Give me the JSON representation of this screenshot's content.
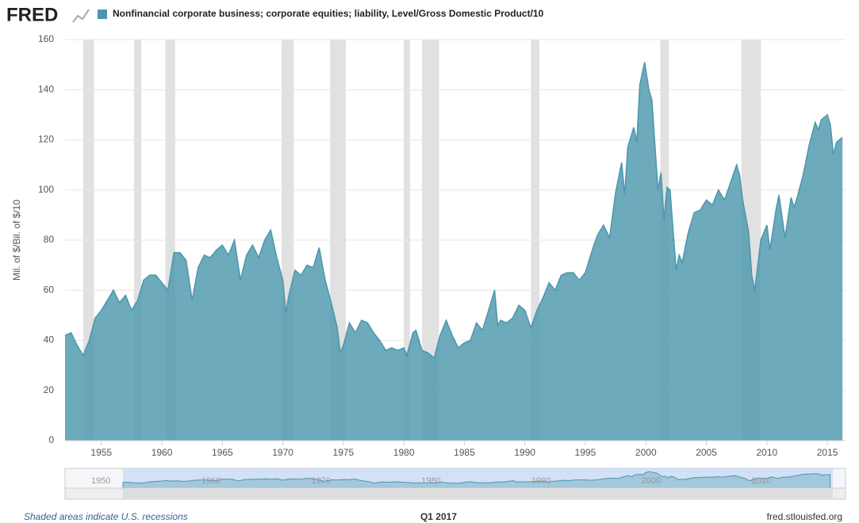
{
  "logo": "FRED",
  "chart_data": {
    "type": "area",
    "ylabel": "Mil. of $/Bil. of $/10",
    "series": [
      {
        "name": "Nonfinancial corporate business; corporate equities; liability, Level/Gross Domestic Product/10",
        "color": "#4c97ad",
        "x": [
          1952.0,
          1952.5,
          1953.0,
          1953.5,
          1954.0,
          1954.5,
          1955.0,
          1955.5,
          1956.0,
          1956.5,
          1957.0,
          1957.5,
          1958.0,
          1958.5,
          1959.0,
          1959.5,
          1960.0,
          1960.5,
          1961.0,
          1961.5,
          1962.0,
          1962.5,
          1963.0,
          1963.5,
          1964.0,
          1964.5,
          1965.0,
          1965.5,
          1966.0,
          1966.5,
          1967.0,
          1967.5,
          1968.0,
          1968.5,
          1969.0,
          1969.5,
          1970.0,
          1970.25,
          1970.5,
          1971.0,
          1971.5,
          1972.0,
          1972.5,
          1973.0,
          1973.5,
          1974.0,
          1974.5,
          1974.75,
          1975.0,
          1975.5,
          1976.0,
          1976.5,
          1977.0,
          1977.5,
          1978.0,
          1978.5,
          1979.0,
          1979.5,
          1980.0,
          1980.25,
          1980.75,
          1981.0,
          1981.5,
          1982.0,
          1982.5,
          1983.0,
          1983.5,
          1984.0,
          1984.5,
          1985.0,
          1985.5,
          1986.0,
          1986.5,
          1987.0,
          1987.5,
          1987.75,
          1988.0,
          1988.5,
          1989.0,
          1989.5,
          1990.0,
          1990.5,
          1991.0,
          1991.5,
          1992.0,
          1992.5,
          1993.0,
          1993.5,
          1994.0,
          1994.5,
          1995.0,
          1995.5,
          1996.0,
          1996.5,
          1997.0,
          1997.5,
          1998.0,
          1998.25,
          1998.5,
          1999.0,
          1999.25,
          1999.5,
          1999.9,
          2000.25,
          2000.5,
          2001.0,
          2001.25,
          2001.5,
          2001.75,
          2002.0,
          2002.5,
          2002.75,
          2003.0,
          2003.5,
          2004.0,
          2004.5,
          2005.0,
          2005.5,
          2006.0,
          2006.5,
          2007.0,
          2007.5,
          2007.75,
          2008.0,
          2008.5,
          2008.75,
          2009.0,
          2009.5,
          2010.0,
          2010.25,
          2010.75,
          2011.0,
          2011.5,
          2012.0,
          2012.25,
          2012.5,
          2013.0,
          2013.5,
          2014.0,
          2014.25,
          2014.5,
          2015.0,
          2015.25,
          2015.5,
          2015.75,
          2016.25
        ],
        "values": [
          42,
          43,
          38,
          34,
          40,
          49,
          52,
          56,
          60,
          55,
          58,
          52,
          56,
          64,
          66,
          66,
          63,
          60,
          75,
          75,
          72,
          56,
          69,
          74,
          73,
          76,
          78,
          74,
          80,
          64,
          74,
          78,
          73,
          80,
          84,
          73,
          64,
          51,
          58,
          68,
          66,
          70,
          69,
          77,
          64,
          55,
          45,
          35,
          38,
          47,
          43,
          48,
          47,
          43,
          40,
          36,
          37,
          36,
          37,
          34,
          43,
          44,
          36,
          35,
          33,
          42,
          48,
          42,
          37,
          39,
          40,
          47,
          44,
          52,
          60,
          46,
          48,
          47,
          49,
          54,
          52,
          45,
          52,
          57,
          63,
          60,
          66,
          67,
          67,
          64,
          67,
          75,
          82,
          86,
          81,
          99,
          111,
          98,
          117,
          125,
          119,
          142,
          151,
          140,
          136,
          100,
          107,
          88,
          101,
          100,
          68,
          74,
          71,
          83,
          91,
          92,
          96,
          94,
          100,
          96,
          103,
          110,
          106,
          96,
          83,
          66,
          60,
          80,
          86,
          76,
          92,
          98,
          81,
          97,
          93,
          97,
          106,
          118,
          127,
          124,
          128,
          130,
          126,
          114,
          119,
          121
        ]
      }
    ],
    "recessions": [
      [
        1953.5,
        1954.4
      ],
      [
        1957.7,
        1958.3
      ],
      [
        1960.3,
        1961.1
      ],
      [
        1969.9,
        1970.9
      ],
      [
        1973.9,
        1975.2
      ],
      [
        1980.0,
        1980.5
      ],
      [
        1981.5,
        1982.9
      ],
      [
        1990.5,
        1991.2
      ],
      [
        2001.2,
        2001.9
      ],
      [
        2007.9,
        2009.5
      ]
    ],
    "xlim": [
      1952.0,
      2016.5
    ],
    "xticks": [
      1955,
      1960,
      1965,
      1970,
      1975,
      1980,
      1985,
      1990,
      1995,
      2000,
      2005,
      2010,
      2015
    ],
    "ylim": [
      0,
      160
    ],
    "yticks": [
      0,
      20,
      40,
      60,
      80,
      100,
      120,
      140,
      160
    ],
    "grid": true,
    "navigator_ticks": [
      1950,
      1960,
      1970,
      1980,
      1990,
      2000,
      2010
    ]
  },
  "footer": {
    "note": "Shaded areas indicate U.S. recessions",
    "period": "Q1 2017",
    "source": "fred.stlouisfed.org"
  }
}
